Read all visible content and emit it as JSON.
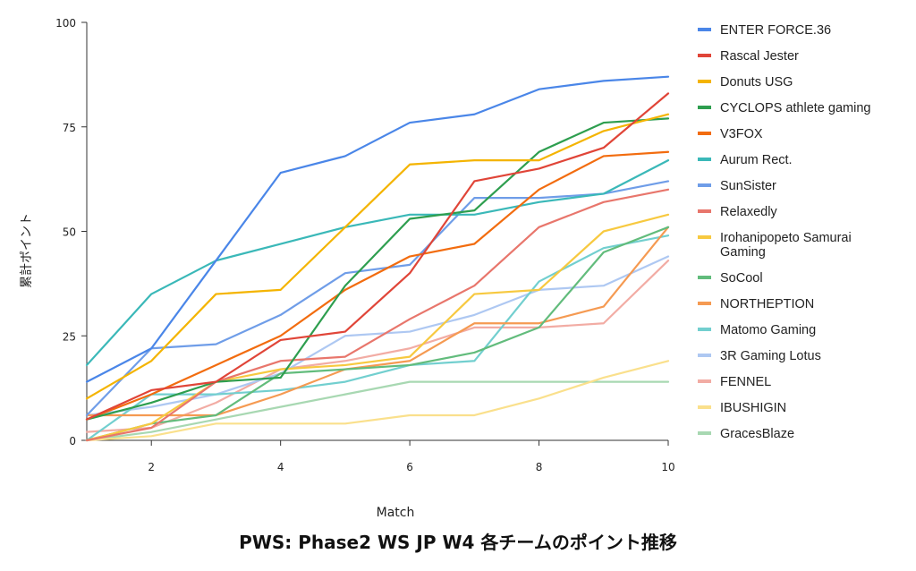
{
  "chart_data": {
    "type": "line",
    "title": "PWS: Phase2 WS JP W4 各チームのポイント推移",
    "xlabel": "Match",
    "ylabel": "累計ポイント",
    "xlim": [
      1,
      10
    ],
    "ylim": [
      0,
      100
    ],
    "x_ticks": [
      2,
      4,
      6,
      8,
      10
    ],
    "y_ticks": [
      0,
      25,
      50,
      75,
      100
    ],
    "x": [
      1,
      2,
      3,
      4,
      5,
      6,
      7,
      8,
      9,
      10
    ],
    "legend_position": "right",
    "series": [
      {
        "name": "ENTER FORCE.36",
        "color": "#4a86e8",
        "values": [
          14,
          22,
          43,
          64,
          68,
          76,
          78,
          84,
          86,
          87
        ]
      },
      {
        "name": "Rascal Jester",
        "color": "#e04538",
        "values": [
          5,
          12,
          14,
          24,
          26,
          40,
          62,
          65,
          70,
          83
        ]
      },
      {
        "name": "Donuts USG",
        "color": "#f4b400",
        "values": [
          10,
          19,
          35,
          36,
          51,
          66,
          67,
          67,
          74,
          78
        ]
      },
      {
        "name": "CYCLOPS athlete gaming",
        "color": "#2e9e4f",
        "values": [
          5,
          9,
          14,
          15,
          37,
          53,
          55,
          69,
          76,
          77
        ]
      },
      {
        "name": "V3FOX",
        "color": "#f26c0f",
        "values": [
          5,
          11,
          18,
          25,
          36,
          44,
          47,
          60,
          68,
          69
        ]
      },
      {
        "name": "Aurum Rect.",
        "color": "#3ab8b8",
        "values": [
          18,
          35,
          43,
          47,
          51,
          54,
          54,
          57,
          59,
          67
        ]
      },
      {
        "name": "SunSister",
        "color": "#6f9de8",
        "values": [
          6,
          22,
          23,
          30,
          40,
          42,
          58,
          58,
          59,
          62
        ]
      },
      {
        "name": "Relaxedly",
        "color": "#e8766c",
        "values": [
          0,
          3,
          14,
          19,
          20,
          29,
          37,
          51,
          57,
          60
        ]
      },
      {
        "name": "Irohanipopeto Samurai Gaming",
        "color": "#f7c940",
        "values": [
          0,
          4,
          14,
          17,
          18,
          20,
          35,
          36,
          50,
          54
        ]
      },
      {
        "name": "SoCool",
        "color": "#62bc7c",
        "values": [
          0,
          4,
          6,
          16,
          17,
          18,
          21,
          27,
          45,
          51
        ]
      },
      {
        "name": "NORTHEPTION",
        "color": "#f59a52",
        "values": [
          6,
          6,
          6,
          11,
          17,
          19,
          28,
          28,
          32,
          51
        ]
      },
      {
        "name": "Matomo Gaming",
        "color": "#72cfcf",
        "values": [
          0,
          11,
          11,
          12,
          14,
          18,
          19,
          38,
          46,
          49
        ]
      },
      {
        "name": "3R Gaming Lotus",
        "color": "#aec8f2",
        "values": [
          6,
          8,
          11,
          16,
          25,
          26,
          30,
          36,
          37,
          44
        ]
      },
      {
        "name": "FENNEL",
        "color": "#f2aca4",
        "values": [
          2,
          3,
          9,
          17,
          19,
          22,
          27,
          27,
          28,
          43
        ]
      },
      {
        "name": "IBUSHIGIN",
        "color": "#fae08c",
        "values": [
          0,
          1,
          4,
          4,
          4,
          6,
          6,
          10,
          15,
          19
        ]
      },
      {
        "name": "GracesBlaze",
        "color": "#a8d8b2",
        "values": [
          0,
          2,
          5,
          8,
          11,
          14,
          14,
          14,
          14,
          14
        ]
      }
    ]
  }
}
